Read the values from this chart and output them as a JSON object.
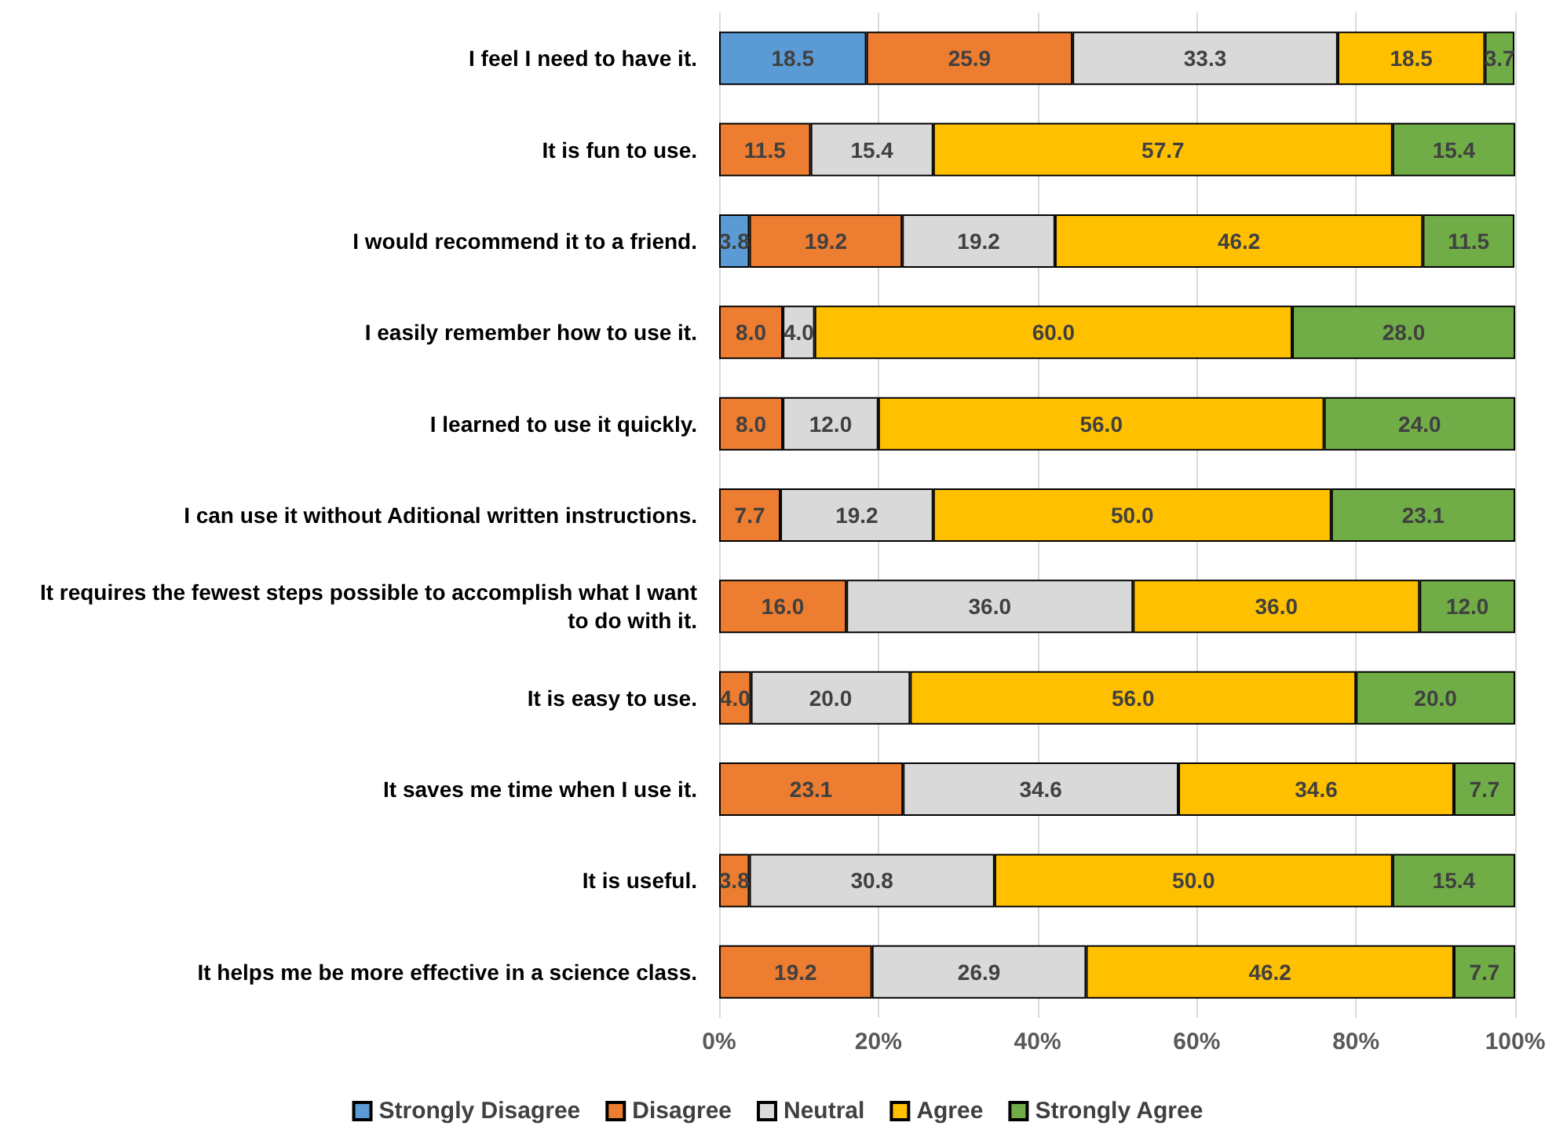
{
  "chart_data": {
    "type": "bar",
    "orientation": "horizontal",
    "stacked": true,
    "grid": "x",
    "legend": "bottom",
    "categories": [
      "I feel I need to have it.",
      "It is fun to use.",
      "I would recommend it to a friend.",
      "I easily remember how to use it.",
      "I learned to use it quickly.",
      "I can use it without Aditional written instructions.",
      "It requires the fewest steps possible to accomplish what I want to do with it.",
      "It is easy to use.",
      "It saves me time when I use it.",
      "It is useful.",
      "It helps me be more effective in a science class."
    ],
    "series": [
      {
        "name": "Strongly Disagree",
        "color": "#5b9bd5",
        "values": [
          18.5,
          null,
          3.8,
          null,
          null,
          null,
          null,
          null,
          null,
          null,
          null
        ],
        "value_labels": [
          "18.5",
          null,
          "3.8",
          null,
          null,
          null,
          null,
          null,
          null,
          null,
          null
        ]
      },
      {
        "name": "Disagree",
        "color": "#ed7d31",
        "values": [
          25.9,
          11.5,
          19.2,
          8.0,
          8.0,
          7.7,
          16.0,
          4.0,
          23.1,
          3.8,
          19.2
        ],
        "value_labels": [
          "25.9",
          "11.5",
          "19.2",
          "8.0",
          "8.0",
          "7.7",
          "16.0",
          "4.0",
          "23.1",
          "3.8",
          "19.2"
        ]
      },
      {
        "name": "Neutral",
        "color": "#d9d9d9",
        "values": [
          33.3,
          15.4,
          19.2,
          4.0,
          12.0,
          19.2,
          36.0,
          20.0,
          34.6,
          30.8,
          26.9
        ],
        "value_labels": [
          "33.3",
          "15.4",
          "19.2",
          "4.0",
          "12.0",
          "19.2",
          "36.0",
          "20.0",
          "34.6",
          "30.8",
          "26.9"
        ]
      },
      {
        "name": "Agree",
        "color": "#ffc000",
        "values": [
          18.5,
          57.7,
          46.2,
          60.0,
          56.0,
          50.0,
          36.0,
          56.0,
          34.6,
          50.0,
          46.2
        ],
        "value_labels": [
          "18.5",
          "57.7",
          "46.2",
          "60.0",
          "56.0",
          "50.0",
          "36.0",
          "56.0",
          "34.6",
          "50.0",
          "46.2"
        ]
      },
      {
        "name": "Strongly Agree",
        "color": "#70ad47",
        "values": [
          3.7,
          15.4,
          11.5,
          28.0,
          24.0,
          23.1,
          12.0,
          20.0,
          7.7,
          15.4,
          7.7
        ],
        "value_labels": [
          "3.7",
          "15.4",
          "11.5",
          "28.0",
          "24.0",
          "23.1",
          "12.0",
          "20.0",
          "7.7",
          "15.4",
          "7.7"
        ]
      }
    ],
    "xlim": [
      0,
      100
    ],
    "xticks": [
      {
        "value": 0,
        "label": "0%"
      },
      {
        "value": 20,
        "label": "20%"
      },
      {
        "value": 40,
        "label": "40%"
      },
      {
        "value": 60,
        "label": "60%"
      },
      {
        "value": 80,
        "label": "80%"
      },
      {
        "value": 100,
        "label": "100%"
      }
    ]
  }
}
